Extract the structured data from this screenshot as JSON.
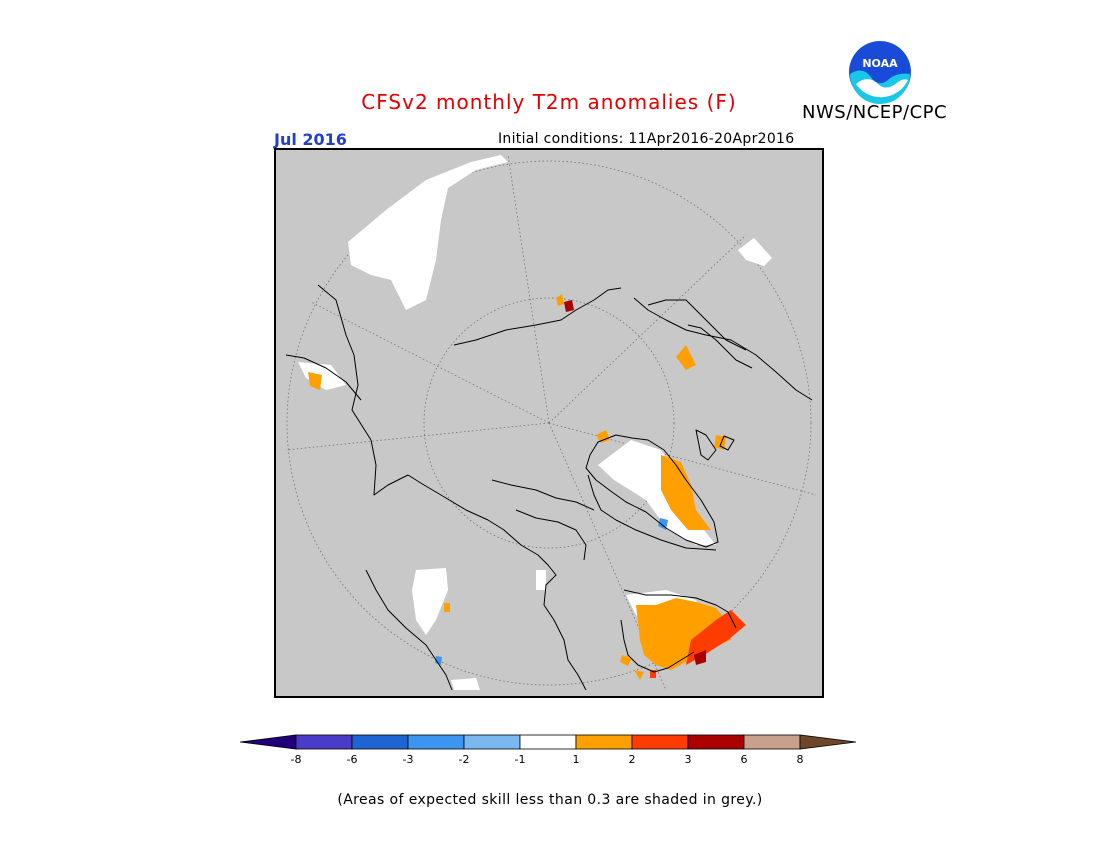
{
  "header": {
    "title": "CFSv2 monthly T2m anomalies (F)",
    "title_color": "#e00000",
    "agency": "NWS/NCEP/CPC",
    "logo_text": "NOAA",
    "month": "Jul 2016",
    "initial_conditions": "Initial conditions: 11Apr2016-20Apr2016"
  },
  "map": {
    "projection": "north polar stereographic",
    "background_color": "#c8c8c8"
  },
  "legend": {
    "colors": [
      "#20007a",
      "#4a3cc8",
      "#1e64d2",
      "#3c96f0",
      "#7ab8f0",
      "#ffffff",
      "#ffa000",
      "#ff3c00",
      "#aa0000",
      "#c8a08c",
      "#6e4628"
    ],
    "ticks": [
      "-8",
      "-6",
      "-3",
      "-2",
      "-1",
      "1",
      "2",
      "3",
      "6",
      "8"
    ]
  },
  "footnote": "(Areas of expected skill less than 0.3 are shaded in grey.)"
}
